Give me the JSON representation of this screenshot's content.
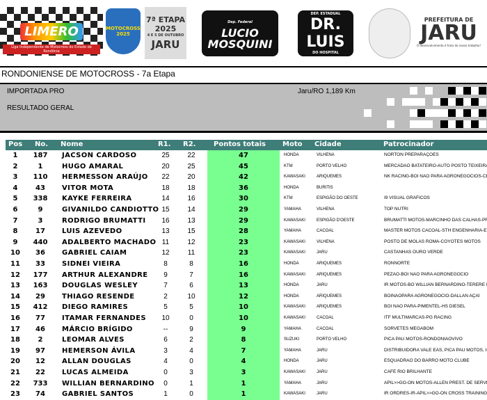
{
  "banner": {
    "limero": "LIMERO",
    "limero_sub": "Liga Independente de Motocross do Estado de Rondônia",
    "shield": "MOTOCROSS 2025",
    "etapa": {
      "line1": "7ª ETAPA",
      "year": "2025",
      "dates": "4 E 5 DE OUTUBRO",
      "city": "JARU"
    },
    "lucio": {
      "top": "Dep. Federal",
      "line1": "LUCIO",
      "line2": "MOSQUINI"
    },
    "luis": {
      "top": "DEP. ESTADUAL",
      "name": "DR. LUIS",
      "bottom": "DO HOSPITAL"
    },
    "jaru": {
      "top": "PREFEITURA DE",
      "name": "JARU",
      "tagline": "O desenvolvimento é fruto do nosso trabalho!"
    }
  },
  "title": "RONDONIENSE DE MOTOCROSS - 7a Etapa",
  "panel": {
    "category": "IMPORTADA PRO",
    "result": "RESULTADO GERAL",
    "location": "Jaru/RO 1,189 Km"
  },
  "colors": {
    "header": "#3e7d78",
    "points": "#78ff90",
    "panel": "#bdbdbd"
  },
  "columns": {
    "pos": "Pos",
    "no": "No.",
    "nome": "Nome",
    "r1": "R1.",
    "r2": "R2.",
    "pt": "Pontos totais",
    "moto": "Moto",
    "cid": "Cidade",
    "pat": "Patrocinador"
  },
  "rows": [
    {
      "pos": "1",
      "no": "187",
      "nome": "JACSON CARDOSO",
      "r1": "25",
      "r2": "22",
      "pt": "47",
      "moto": "HONDA",
      "cid": "VILHENA",
      "pat": "NORTON PREPARAÇÕES"
    },
    {
      "pos": "2",
      "no": "1",
      "nome": "HUGO AMARAL",
      "r1": "20",
      "r2": "25",
      "pt": "45",
      "moto": "KTM",
      "cid": "PORTO VELHO",
      "pat": "MERCADÃO BATATEIRO-AUTO POSTO TEIXEIRÃO-A"
    },
    {
      "pos": "3",
      "no": "110",
      "nome": "HERMESSON ARAÚJO",
      "r1": "22",
      "r2": "20",
      "pt": "42",
      "moto": "KAWASAKI",
      "cid": "ARIQUEMES",
      "pat": "NK RACING-BOI NÃO PARA AGRONEGÓCIOS-CENTR"
    },
    {
      "pos": "4",
      "no": "43",
      "nome": "VITOR MOTA",
      "r1": "18",
      "r2": "18",
      "pt": "36",
      "moto": "HONDA",
      "cid": "BURITIS",
      "pat": ""
    },
    {
      "pos": "5",
      "no": "338",
      "nome": "KAYKE FERREIRA",
      "r1": "14",
      "r2": "16",
      "pt": "30",
      "moto": "KTM",
      "cid": "ESPIGÃO DO OESTE",
      "pat": "I9 VISUAL GRÁFICOS"
    },
    {
      "pos": "6",
      "no": "9",
      "nome": "GIVANILDO CANDIOTTO",
      "r1": "15",
      "r2": "14",
      "pt": "29",
      "moto": "YAMAHA",
      "cid": "VILHENA",
      "pat": "TOP NUTRI"
    },
    {
      "pos": "7",
      "no": "3",
      "nome": "RODRIGO BRUMATTI",
      "r1": "16",
      "r2": "13",
      "pt": "29",
      "moto": "KAWASAKI",
      "cid": "ESPIGÃO D'OESTE",
      "pat": "BRUMATTI MOTOS-MARCINHO DAS CALHAS-PRIMEV"
    },
    {
      "pos": "8",
      "no": "17",
      "nome": "LUIS AZEVEDO",
      "r1": "13",
      "r2": "15",
      "pt": "28",
      "moto": "YAMAHA",
      "cid": "CACOAL",
      "pat": "MASTER MOTOS CACOAL-STH ENGENHARIA-ELBINH"
    },
    {
      "pos": "9",
      "no": "440",
      "nome": "ADALBERTO MACHADO",
      "r1": "11",
      "r2": "12",
      "pt": "23",
      "moto": "KAWASAKI",
      "cid": "VILHENA",
      "pat": "POSTO DE MOLAS ROMA-COYOTES MOTOS"
    },
    {
      "pos": "10",
      "no": "36",
      "nome": "GABRIEL CAIAM",
      "r1": "12",
      "r2": "11",
      "pt": "23",
      "moto": "KAWASAKI",
      "cid": "JARU",
      "pat": "CASTANHAS OURO VERDE"
    },
    {
      "pos": "11",
      "no": "33",
      "nome": "SIDNEI VIEIRA",
      "r1": "8",
      "r2": "8",
      "pt": "16",
      "moto": "HONDA",
      "cid": "ARIQUEMES",
      "pat": "RONNORTE"
    },
    {
      "pos": "12",
      "no": "177",
      "nome": "ARTHUR ALEXANDRE",
      "r1": "9",
      "r2": "7",
      "pt": "16",
      "moto": "KAWASAKI",
      "cid": "ARIQUEMES",
      "pat": "PEZÃO-BOI NÃO PARA AGRONEGÓCIO"
    },
    {
      "pos": "13",
      "no": "163",
      "nome": "DOUGLAS WESLEY",
      "r1": "7",
      "r2": "6",
      "pt": "13",
      "moto": "HONDA",
      "cid": "JARU",
      "pat": "IR MOTOS-BO WILLIAN BERNARDINO-TERERE III"
    },
    {
      "pos": "14",
      "no": "29",
      "nome": "THIAGO RESENDE",
      "r1": "2",
      "r2": "10",
      "pt": "12",
      "moto": "HONDA",
      "cid": "ARIQUEMES",
      "pat": "BOINAOPARA AGRONEGÓCIO-DALLAN AÇAÍ"
    },
    {
      "pos": "15",
      "no": "412",
      "nome": "DIEGO RAMIRES",
      "r1": "5",
      "r2": "5",
      "pt": "10",
      "moto": "KAWASAKI",
      "cid": "ARIQUEMES",
      "pat": "BOI NÃO PARA-PIMENTEL-HS DIESEL"
    },
    {
      "pos": "16",
      "no": "77",
      "nome": "ITAMAR FERNANDES",
      "r1": "10",
      "r2": "0",
      "pt": "10",
      "moto": "KAWASAKI",
      "cid": "CACOAL",
      "pat": "ITF MULTIMARCAS-PG RACING"
    },
    {
      "pos": "17",
      "no": "46",
      "nome": "MÁRCIO BRÍGIDO",
      "r1": "--",
      "r2": "9",
      "pt": "9",
      "moto": "YAMAHA",
      "cid": "CACOAL",
      "pat": "SORVETES MEGABOM"
    },
    {
      "pos": "18",
      "no": "2",
      "nome": "LEOMAR ALVES",
      "r1": "6",
      "r2": "2",
      "pt": "8",
      "moto": "SUZUKI",
      "cid": "PORTO VELHO",
      "pat": "PICA PAU MOTOS-RONDÔNIAOVIVO"
    },
    {
      "pos": "19",
      "no": "97",
      "nome": "HEMERSON ÁVILA",
      "r1": "3",
      "r2": "4",
      "pt": "7",
      "moto": "YAMAHA",
      "cid": "JARU",
      "pat": "DISTRIBUIDORA VALE EÁS, PICA PAU MOTOS, IPHI"
    },
    {
      "pos": "20",
      "no": "12",
      "nome": "ALLAN DOUGLAS",
      "r1": "4",
      "r2": "0",
      "pt": "4",
      "moto": "HONDA",
      "cid": "JARU",
      "pat": "ESQUADRÃO DO BARRO MOTO CLUBE"
    },
    {
      "pos": "21",
      "no": "22",
      "nome": "LUCAS ALMEIDA",
      "r1": "0",
      "r2": "3",
      "pt": "3",
      "moto": "KAWASAKI",
      "cid": "JARU",
      "pat": "CAFÉ RIO BRILHANTE"
    },
    {
      "pos": "22",
      "no": "733",
      "nome": "WILLIAN BERNARDINO",
      "r1": "0",
      "r2": "1",
      "pt": "1",
      "moto": "YAMAHA",
      "cid": "JARU",
      "pat": "APIL>>GO-ON MOTOS-ALLEN PREST. DE SERVIÇO"
    },
    {
      "pos": "23",
      "no": "74",
      "nome": "GABRIEL SANTOS",
      "r1": "1",
      "r2": "0",
      "pt": "1",
      "moto": "KAWASAKI",
      "cid": "JARU",
      "pat": "IR ORDRES-IR-APIL>>GO-ON CROSS TRAINING-DA"
    }
  ]
}
